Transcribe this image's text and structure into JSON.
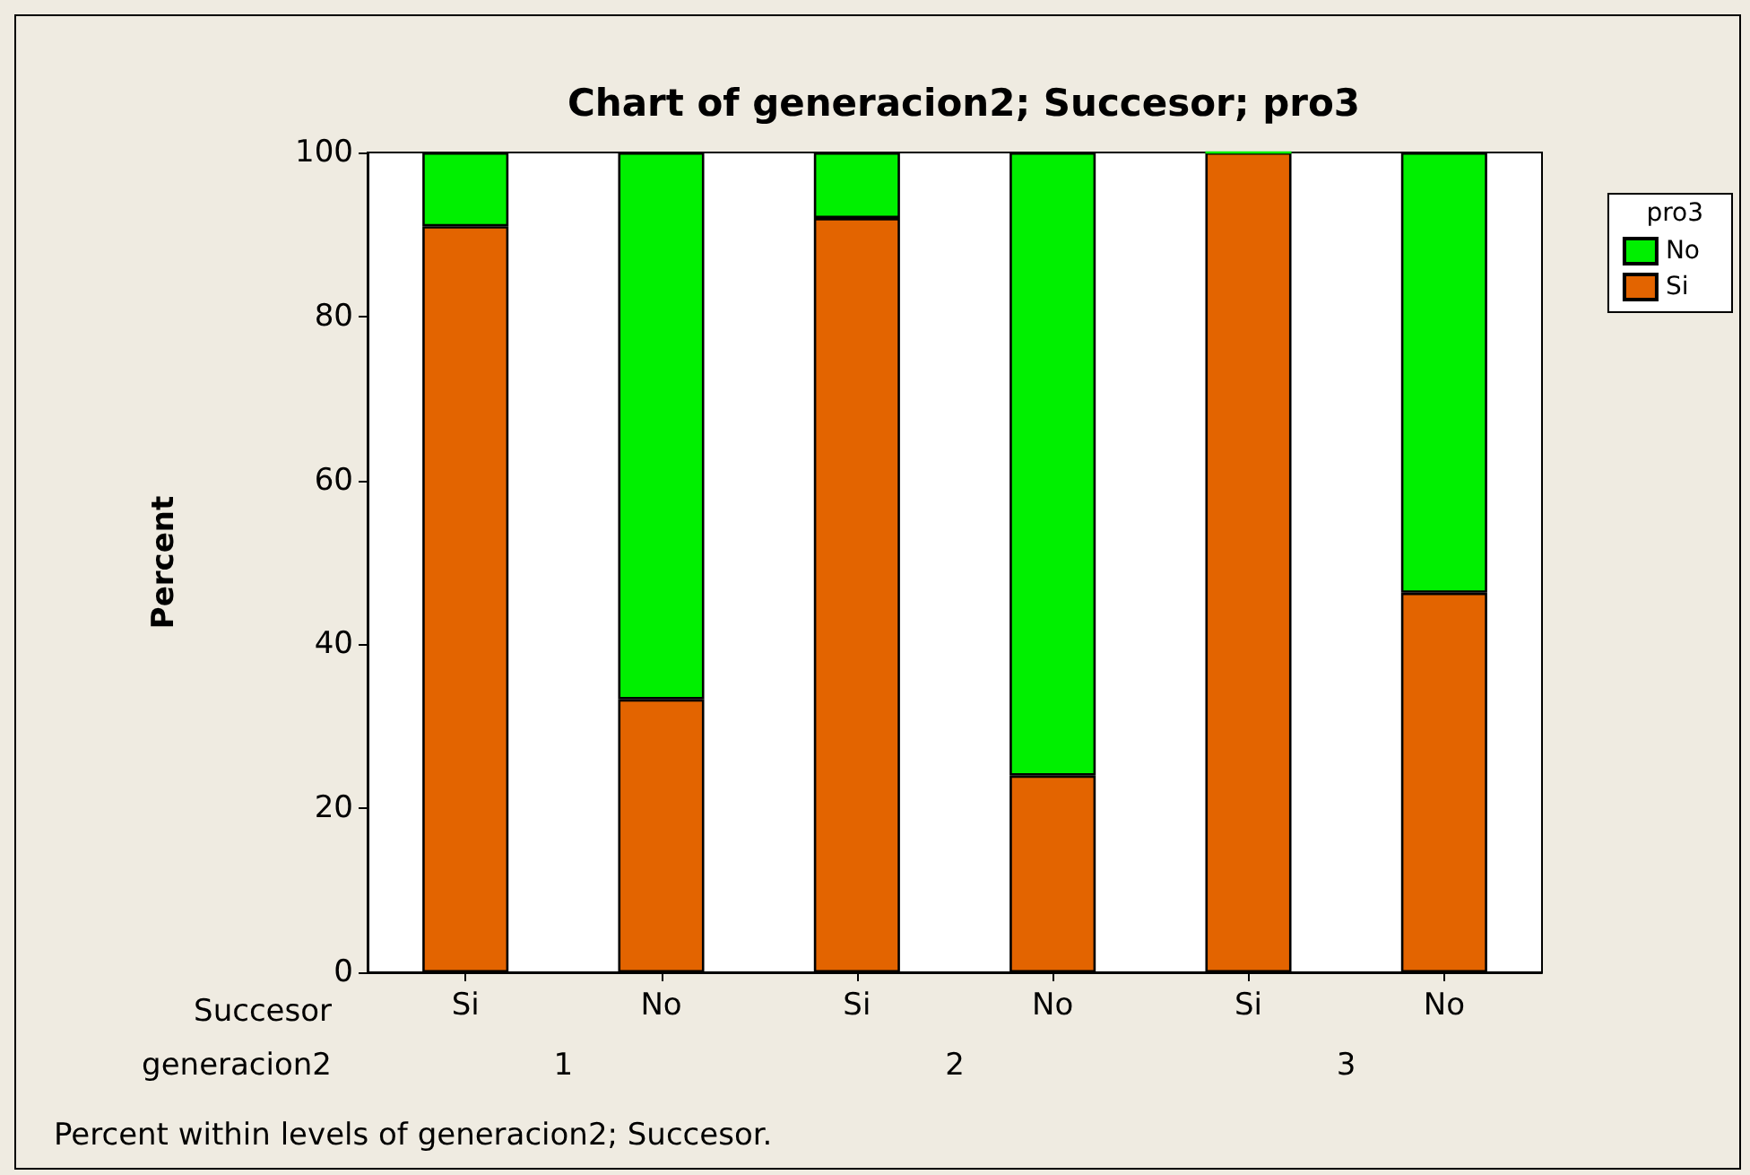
{
  "chart_data": {
    "type": "bar",
    "title": "Chart of generacion2; Succesor; pro3",
    "ylabel": "Percent",
    "legend_title": "pro3",
    "categories": [
      "Si",
      "No",
      "Si",
      "No",
      "Si",
      "No"
    ],
    "stacked": true,
    "series": [
      {
        "name": "Si",
        "color": "#e36400",
        "values": [
          91,
          33.3,
          92,
          24,
          100,
          46.3
        ]
      },
      {
        "name": "No",
        "color": "#00f000",
        "values": [
          9,
          66.7,
          8,
          76,
          0,
          53.7
        ]
      }
    ],
    "ylim": [
      0,
      100
    ],
    "yticks": [
      0,
      20,
      40,
      60,
      80,
      100
    ],
    "grid": false,
    "legend": "top right",
    "annotations": [
      "Succesor",
      "generacion2",
      "1",
      "2",
      "3",
      "Percent within levels of generacion2; Succesor."
    ]
  }
}
